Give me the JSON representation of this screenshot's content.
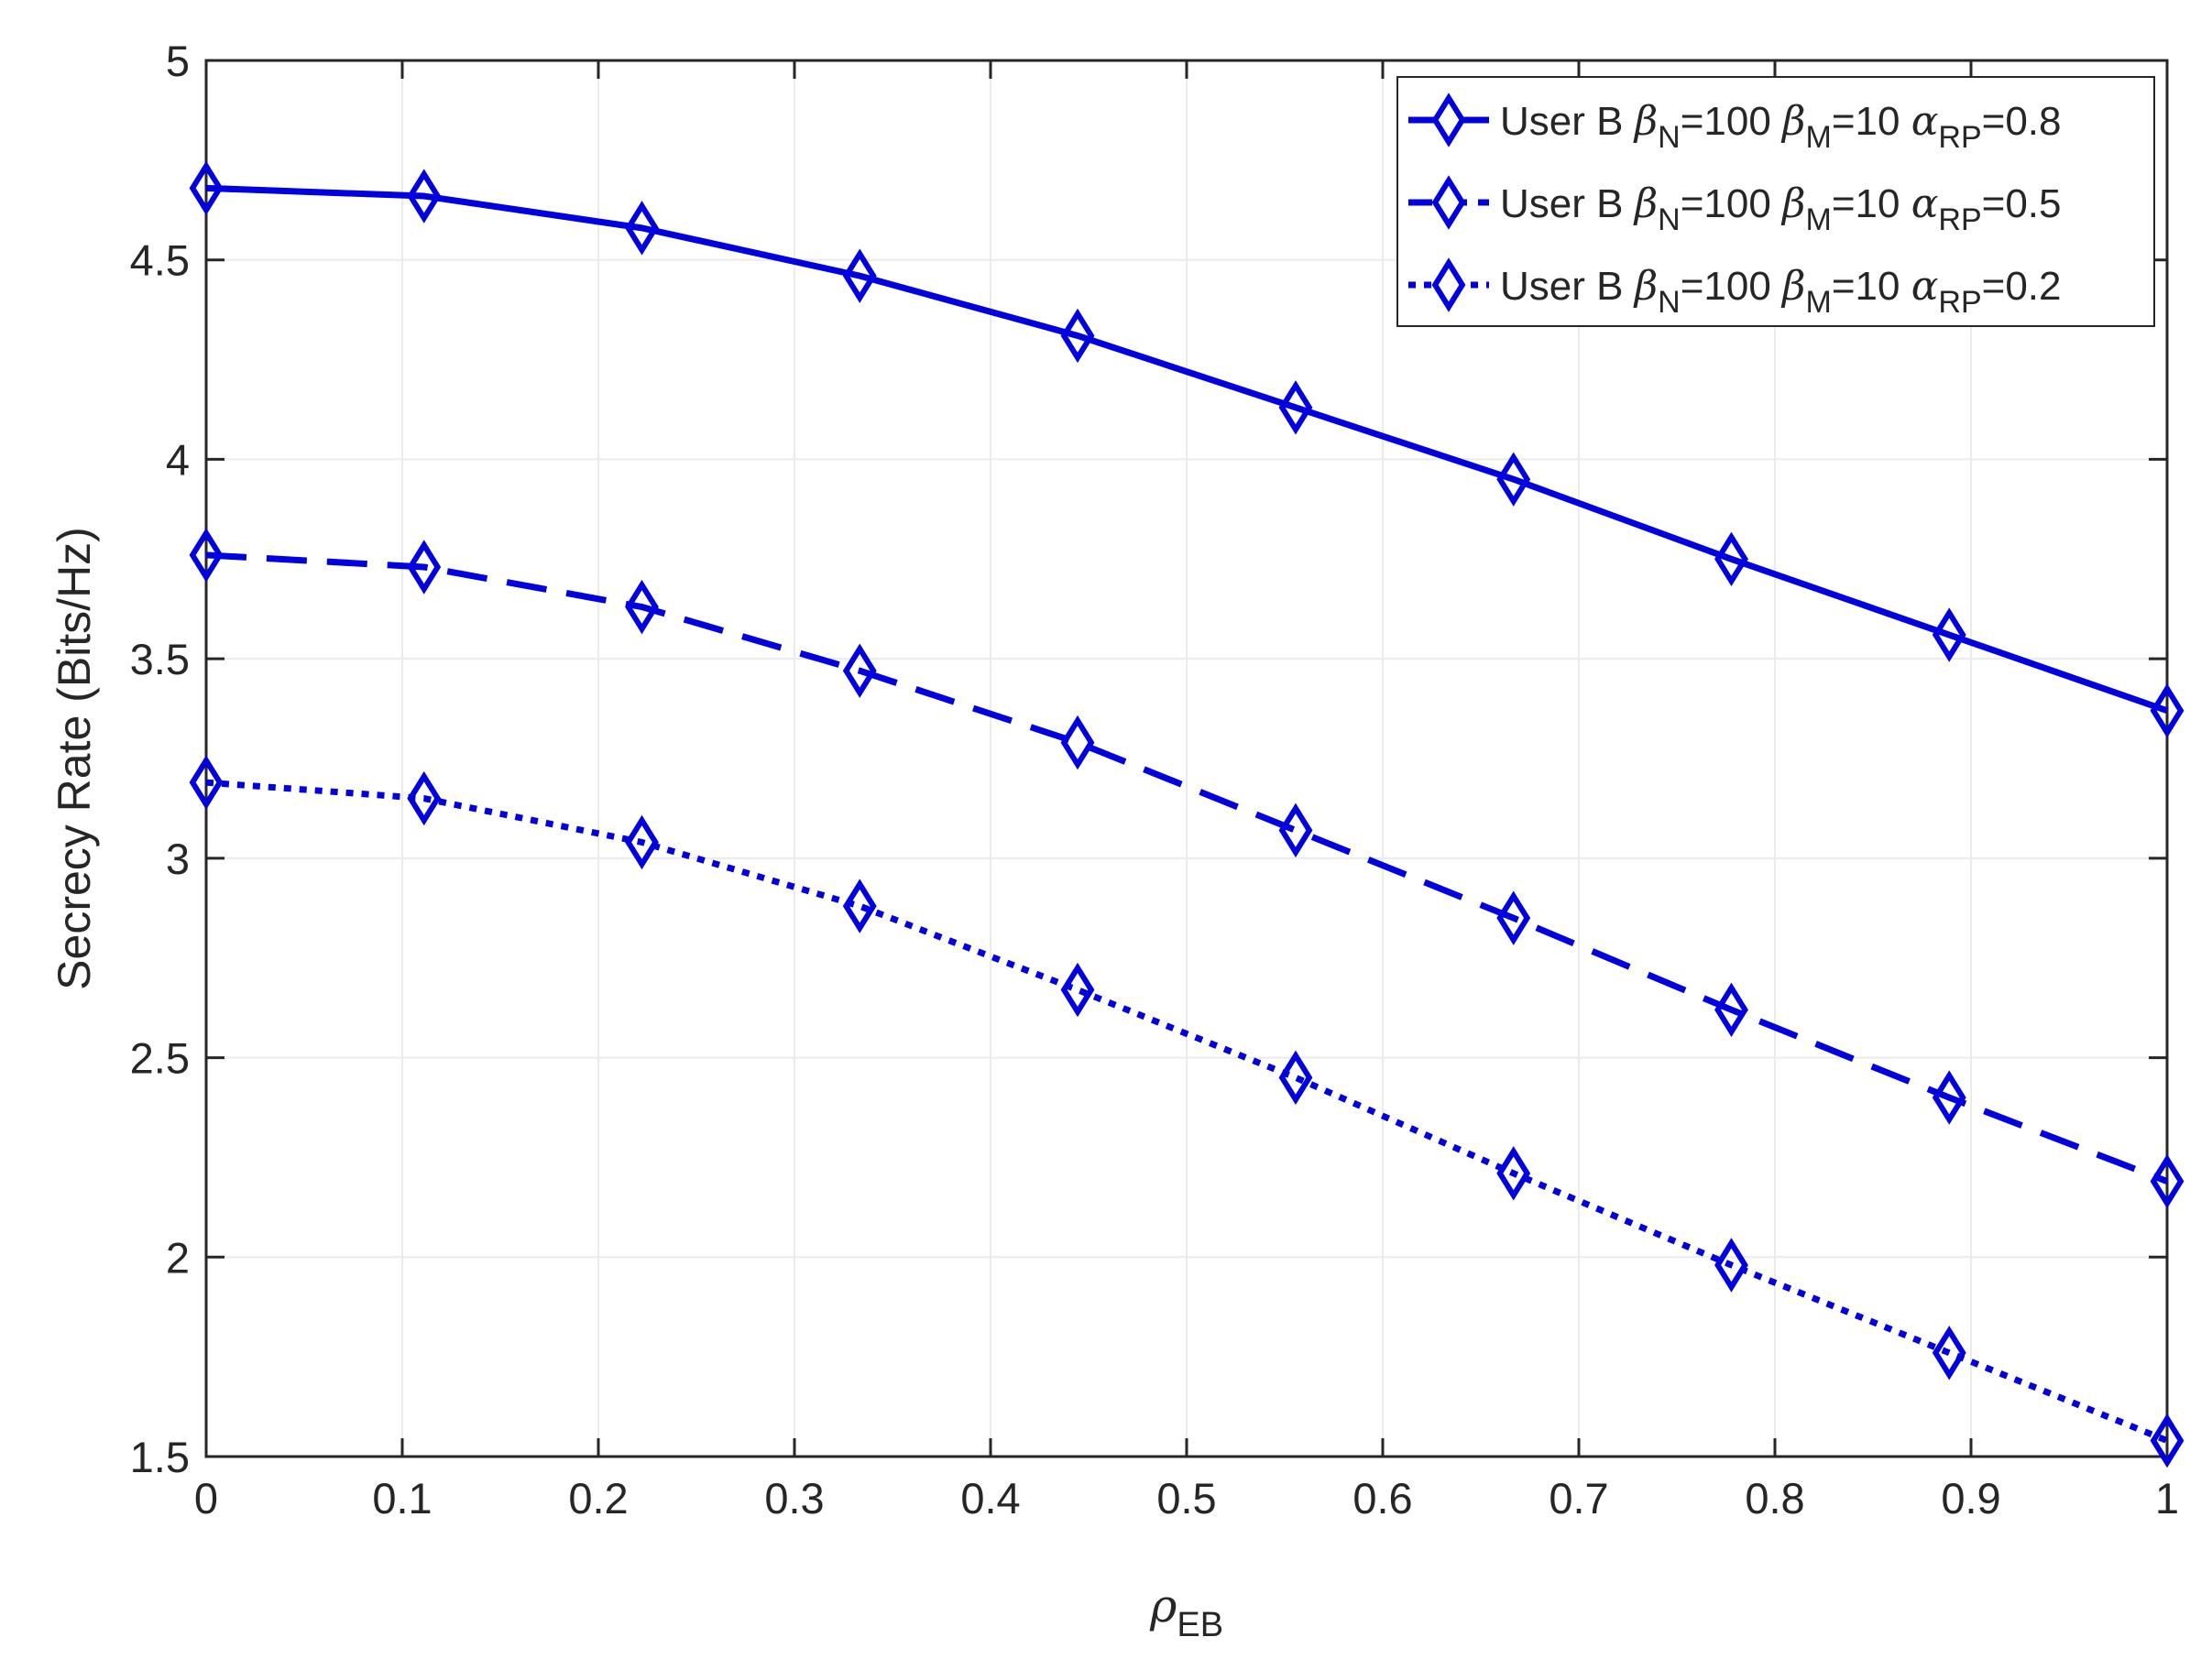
{
  "chart_data": {
    "type": "line",
    "title": "",
    "xlabel": {
      "symbol": "ρ",
      "sub": "EB"
    },
    "ylabel": "Secrecy Rate (Bits/Hz)",
    "xlim": [
      0,
      1
    ],
    "ylim": [
      1.5,
      5
    ],
    "grid": true,
    "xticks": [
      0,
      0.1,
      0.2,
      0.3,
      0.4,
      0.5,
      0.6,
      0.7,
      0.8,
      0.9,
      1
    ],
    "xtick_labels": [
      "0",
      "0.1",
      "0.2",
      "0.3",
      "0.4",
      "0.5",
      "0.6",
      "0.7",
      "0.8",
      "0.9",
      "1"
    ],
    "yticks": [
      1.5,
      2,
      2.5,
      3,
      3.5,
      4,
      4.5,
      5
    ],
    "ytick_labels": [
      "1.5",
      "2",
      "2.5",
      "3",
      "3.5",
      "4",
      "4.5",
      "5"
    ],
    "x": [
      0,
      0.1111,
      0.2222,
      0.3333,
      0.4444,
      0.5556,
      0.6667,
      0.7778,
      0.8889,
      1
    ],
    "legend_position": "top-right",
    "colors": {
      "series": "#0000e0",
      "axis": "#262626",
      "grid": "#ebebeb"
    },
    "marker": "diamond",
    "series": [
      {
        "legend": {
          "prefix": "User B ",
          "beta_n_sub": "N",
          "beta_n_val": "=100 ",
          "beta_m_sub": "M",
          "beta_m_val": "=10 ",
          "alpha_sub": "RP",
          "alpha_val": "=0.8"
        },
        "line_style": "solid",
        "values": [
          4.68,
          4.66,
          4.58,
          4.46,
          4.31,
          4.13,
          3.95,
          3.75,
          3.56,
          3.37
        ]
      },
      {
        "legend": {
          "prefix": "User B ",
          "beta_n_sub": "N",
          "beta_n_val": "=100 ",
          "beta_m_sub": "M",
          "beta_m_val": "=10 ",
          "alpha_sub": "RP",
          "alpha_val": "=0.5"
        },
        "line_style": "dashed",
        "values": [
          3.76,
          3.73,
          3.63,
          3.47,
          3.29,
          3.07,
          2.85,
          2.62,
          2.4,
          2.19
        ]
      },
      {
        "legend": {
          "prefix": "User B ",
          "beta_n_sub": "N",
          "beta_n_val": "=100 ",
          "beta_m_sub": "M",
          "beta_m_val": "=10 ",
          "alpha_sub": "RP",
          "alpha_val": "=0.2"
        },
        "line_style": "dotted",
        "values": [
          3.19,
          3.15,
          3.04,
          2.88,
          2.67,
          2.45,
          2.21,
          1.98,
          1.76,
          1.54
        ]
      }
    ]
  }
}
